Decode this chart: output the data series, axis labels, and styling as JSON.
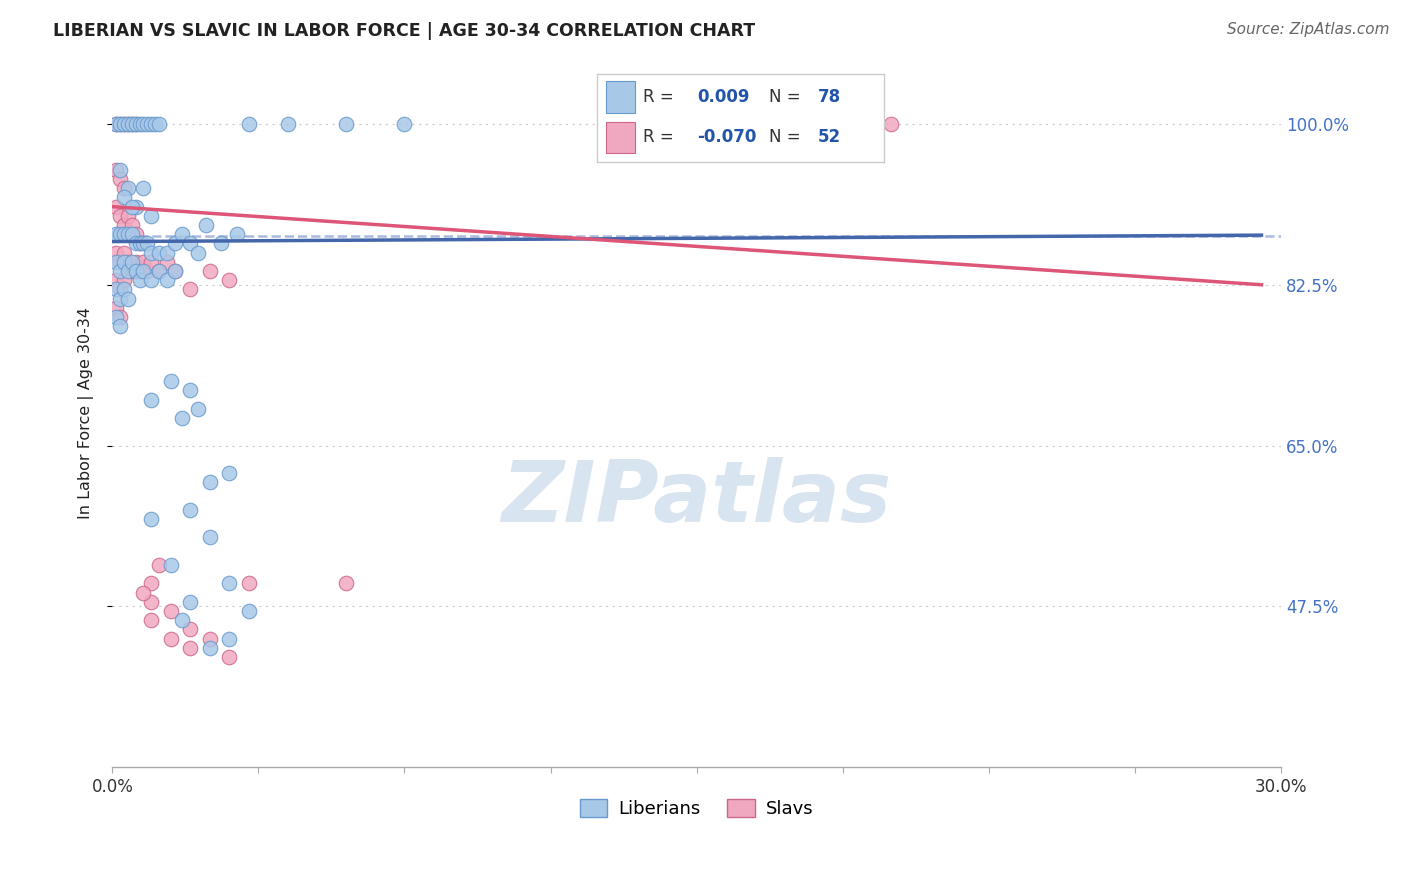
{
  "title": "LIBERIAN VS SLAVIC IN LABOR FORCE | AGE 30-34 CORRELATION CHART",
  "source": "Source: ZipAtlas.com",
  "ylabel": "In Labor Force | Age 30-34",
  "ytick_values": [
    1.0,
    0.825,
    0.65,
    0.475
  ],
  "xlim": [
    0.0,
    0.3
  ],
  "ylim": [
    0.3,
    1.07
  ],
  "liberian_R": 0.009,
  "liberian_N": 78,
  "slavic_R": -0.07,
  "slavic_N": 52,
  "blue_fill": "#a8c8e8",
  "blue_edge": "#6699cc",
  "pink_fill": "#f0a8c0",
  "pink_edge": "#cc6688",
  "blue_line_color": "#4466aa",
  "pink_line_color": "#dd5577",
  "dashed_line_color": "#aabbdd",
  "dashed_line_y": 0.878,
  "blue_trend_x": [
    0.0,
    0.295
  ],
  "blue_trend_y": [
    0.872,
    0.879
  ],
  "pink_trend_x": [
    0.0,
    0.295
  ],
  "pink_trend_y": [
    0.91,
    0.825
  ],
  "background_color": "#ffffff",
  "grid_color": "#cccccc",
  "watermark_text": "ZIPatlas",
  "watermark_color": "#d8e4f0",
  "lib_dots": [
    [
      0.001,
      1.0
    ],
    [
      0.002,
      1.0
    ],
    [
      0.003,
      1.0
    ],
    [
      0.004,
      1.0
    ],
    [
      0.005,
      1.0
    ],
    [
      0.006,
      1.0
    ],
    [
      0.007,
      1.0
    ],
    [
      0.008,
      1.0
    ],
    [
      0.009,
      1.0
    ],
    [
      0.01,
      1.0
    ],
    [
      0.011,
      1.0
    ],
    [
      0.012,
      1.0
    ],
    [
      0.035,
      1.0
    ],
    [
      0.045,
      1.0
    ],
    [
      0.06,
      1.0
    ],
    [
      0.075,
      1.0
    ],
    [
      0.002,
      0.95
    ],
    [
      0.004,
      0.93
    ],
    [
      0.006,
      0.91
    ],
    [
      0.008,
      0.93
    ],
    [
      0.003,
      0.92
    ],
    [
      0.005,
      0.91
    ],
    [
      0.01,
      0.9
    ],
    [
      0.001,
      0.88
    ],
    [
      0.002,
      0.88
    ],
    [
      0.003,
      0.88
    ],
    [
      0.004,
      0.88
    ],
    [
      0.005,
      0.88
    ],
    [
      0.006,
      0.87
    ],
    [
      0.007,
      0.87
    ],
    [
      0.008,
      0.87
    ],
    [
      0.009,
      0.87
    ],
    [
      0.01,
      0.86
    ],
    [
      0.012,
      0.86
    ],
    [
      0.014,
      0.86
    ],
    [
      0.016,
      0.87
    ],
    [
      0.018,
      0.88
    ],
    [
      0.02,
      0.87
    ],
    [
      0.022,
      0.86
    ],
    [
      0.024,
      0.89
    ],
    [
      0.028,
      0.87
    ],
    [
      0.032,
      0.88
    ],
    [
      0.001,
      0.85
    ],
    [
      0.002,
      0.84
    ],
    [
      0.003,
      0.85
    ],
    [
      0.004,
      0.84
    ],
    [
      0.005,
      0.85
    ],
    [
      0.006,
      0.84
    ],
    [
      0.007,
      0.83
    ],
    [
      0.008,
      0.84
    ],
    [
      0.01,
      0.83
    ],
    [
      0.012,
      0.84
    ],
    [
      0.014,
      0.83
    ],
    [
      0.016,
      0.84
    ],
    [
      0.001,
      0.82
    ],
    [
      0.002,
      0.81
    ],
    [
      0.003,
      0.82
    ],
    [
      0.004,
      0.81
    ],
    [
      0.001,
      0.79
    ],
    [
      0.002,
      0.78
    ],
    [
      0.015,
      0.72
    ],
    [
      0.02,
      0.71
    ],
    [
      0.01,
      0.7
    ],
    [
      0.018,
      0.68
    ],
    [
      0.022,
      0.69
    ],
    [
      0.03,
      0.62
    ],
    [
      0.025,
      0.61
    ],
    [
      0.01,
      0.57
    ],
    [
      0.02,
      0.58
    ],
    [
      0.015,
      0.52
    ],
    [
      0.025,
      0.55
    ],
    [
      0.03,
      0.5
    ],
    [
      0.02,
      0.48
    ],
    [
      0.035,
      0.47
    ],
    [
      0.018,
      0.46
    ],
    [
      0.025,
      0.43
    ],
    [
      0.03,
      0.44
    ]
  ],
  "slav_dots": [
    [
      0.001,
      1.0
    ],
    [
      0.002,
      1.0
    ],
    [
      0.003,
      1.0
    ],
    [
      0.004,
      1.0
    ],
    [
      0.005,
      1.0
    ],
    [
      0.006,
      1.0
    ],
    [
      0.2,
      1.0
    ],
    [
      0.001,
      0.95
    ],
    [
      0.002,
      0.94
    ],
    [
      0.003,
      0.93
    ],
    [
      0.001,
      0.91
    ],
    [
      0.002,
      0.9
    ],
    [
      0.003,
      0.89
    ],
    [
      0.004,
      0.9
    ],
    [
      0.005,
      0.89
    ],
    [
      0.006,
      0.88
    ],
    [
      0.007,
      0.87
    ],
    [
      0.001,
      0.86
    ],
    [
      0.002,
      0.85
    ],
    [
      0.003,
      0.86
    ],
    [
      0.004,
      0.85
    ],
    [
      0.005,
      0.84
    ],
    [
      0.006,
      0.85
    ],
    [
      0.007,
      0.84
    ],
    [
      0.008,
      0.85
    ],
    [
      0.009,
      0.84
    ],
    [
      0.01,
      0.85
    ],
    [
      0.012,
      0.84
    ],
    [
      0.014,
      0.85
    ],
    [
      0.016,
      0.84
    ],
    [
      0.001,
      0.83
    ],
    [
      0.002,
      0.82
    ],
    [
      0.003,
      0.83
    ],
    [
      0.02,
      0.82
    ],
    [
      0.025,
      0.84
    ],
    [
      0.03,
      0.83
    ],
    [
      0.001,
      0.8
    ],
    [
      0.002,
      0.79
    ],
    [
      0.01,
      0.5
    ],
    [
      0.012,
      0.52
    ],
    [
      0.01,
      0.46
    ],
    [
      0.015,
      0.44
    ],
    [
      0.02,
      0.43
    ],
    [
      0.025,
      0.44
    ],
    [
      0.03,
      0.42
    ],
    [
      0.035,
      0.5
    ],
    [
      0.06,
      0.5
    ],
    [
      0.01,
      0.48
    ],
    [
      0.015,
      0.47
    ],
    [
      0.02,
      0.45
    ],
    [
      0.008,
      0.49
    ]
  ]
}
